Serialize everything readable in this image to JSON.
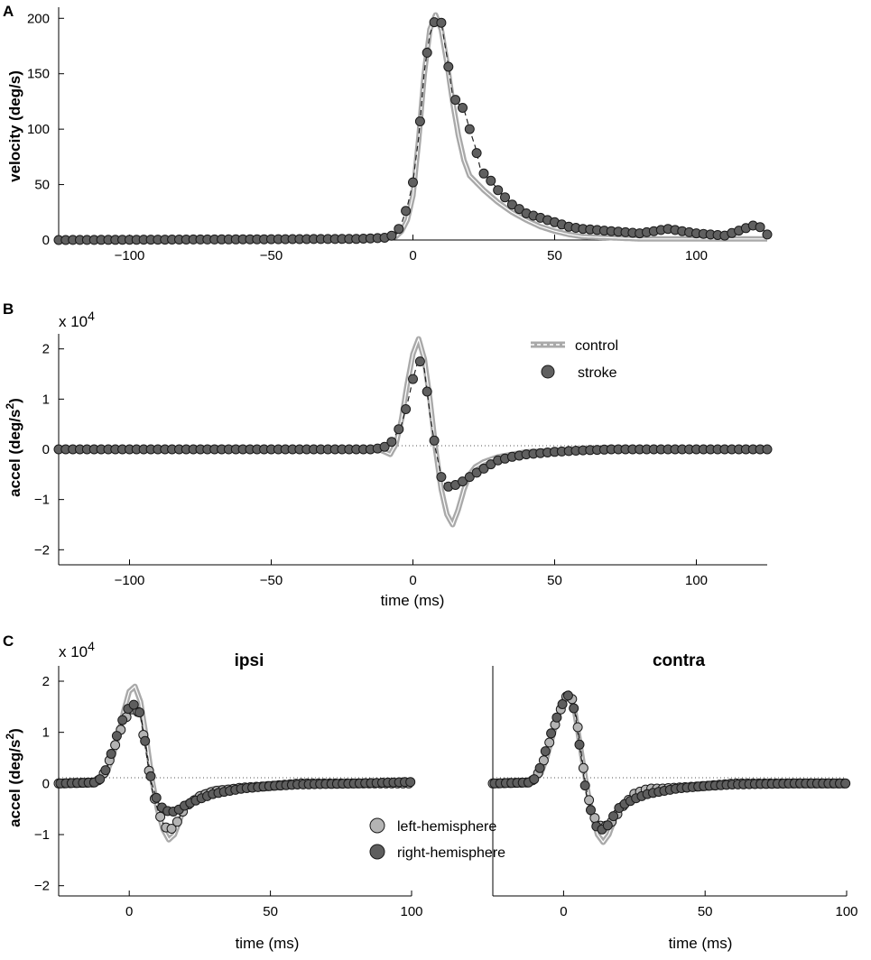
{
  "chart_data": [
    {
      "panel": "A",
      "type": "line",
      "xlabel": "",
      "ylabel": "velocity (deg/s)",
      "xlim": [
        -125,
        125
      ],
      "ylim": [
        0,
        210
      ],
      "xticks": [
        -100,
        -50,
        0,
        50,
        100
      ],
      "xtick_labels": [
        "−100",
        "−50",
        "0",
        "50",
        "100"
      ],
      "yticks": [
        0,
        50,
        100,
        150,
        200
      ],
      "ytick_labels": [
        "0",
        "50",
        "100",
        "150",
        "200"
      ],
      "series": [
        {
          "name": "control",
          "style": "gray line with dashed center",
          "x": [
            -125,
            -20,
            -10,
            -6,
            -4,
            -2,
            0,
            2,
            4,
            6,
            8,
            10,
            12,
            14,
            16,
            18,
            20,
            25,
            30,
            35,
            40,
            45,
            50,
            55,
            60,
            70,
            80,
            100,
            125
          ],
          "values": [
            0,
            0,
            1,
            3,
            8,
            18,
            40,
            90,
            150,
            190,
            203,
            190,
            160,
            125,
            95,
            72,
            58,
            45,
            34,
            25,
            18,
            12,
            8,
            5,
            3,
            2,
            1,
            1,
            1
          ]
        },
        {
          "name": "stroke",
          "style": "dark gray markers",
          "x": [
            -125,
            -20,
            -10,
            -6,
            -4,
            -2,
            0,
            2,
            4,
            6,
            8,
            10,
            12,
            14,
            16,
            18,
            20,
            22,
            24,
            26,
            28,
            30,
            35,
            40,
            45,
            50,
            55,
            60,
            70,
            80,
            90,
            100,
            110,
            120,
            122,
            125
          ],
          "values": [
            0,
            1,
            2,
            5,
            15,
            30,
            52,
            92,
            152,
            186,
            200,
            196,
            165,
            130,
            123,
            118,
            100,
            84,
            62,
            58,
            52,
            45,
            32,
            24,
            20,
            16,
            12,
            10,
            8,
            6,
            10,
            6,
            4,
            13,
            13,
            5
          ]
        }
      ]
    },
    {
      "panel": "B",
      "type": "line",
      "xlabel": "time (ms)",
      "ylabel": "accel (deg/s²)",
      "multiplier": "x 10",
      "multiplier_exp": "4",
      "xlim": [
        -125,
        125
      ],
      "ylim": [
        -2.3,
        2.3
      ],
      "xticks": [
        -100,
        -50,
        0,
        50,
        100
      ],
      "xtick_labels": [
        "−100",
        "−50",
        "0",
        "50",
        "100"
      ],
      "yticks": [
        -2,
        -1,
        0,
        1,
        2
      ],
      "ytick_labels": [
        "−2",
        "−1",
        "0",
        "1",
        "2"
      ],
      "legend": [
        "control",
        "stroke"
      ],
      "legend_position": "top-right",
      "series": [
        {
          "name": "control",
          "x": [
            -125,
            -12,
            -8,
            -6,
            -4,
            -2,
            0,
            2,
            4,
            6,
            8,
            10,
            12,
            14,
            16,
            18,
            20,
            22,
            25,
            30,
            40,
            60,
            125
          ],
          "values": [
            0,
            0,
            -0.1,
            0.1,
            0.6,
            1.3,
            1.9,
            2.2,
            1.8,
            1.0,
            0.0,
            -0.8,
            -1.3,
            -1.5,
            -1.2,
            -0.8,
            -0.5,
            -0.35,
            -0.25,
            -0.15,
            -0.05,
            0,
            0
          ]
        },
        {
          "name": "stroke",
          "x": [
            -125,
            -15,
            -12,
            -10,
            -8,
            -6,
            -4,
            -2,
            0,
            2,
            4,
            6,
            8,
            10,
            12,
            14,
            16,
            18,
            20,
            22,
            24,
            26,
            28,
            30,
            35,
            40,
            50,
            60,
            70,
            80,
            100,
            125
          ],
          "values": [
            0,
            0,
            0.02,
            0.05,
            0.1,
            0.3,
            0.5,
            0.9,
            1.4,
            1.8,
            1.6,
            0.7,
            0,
            -0.55,
            -0.75,
            -0.72,
            -0.7,
            -0.62,
            -0.55,
            -0.48,
            -0.42,
            -0.35,
            -0.28,
            -0.22,
            -0.15,
            -0.1,
            -0.05,
            -0.02,
            0,
            0,
            0,
            0
          ]
        }
      ]
    },
    {
      "panel": "C",
      "title": "ipsi",
      "type": "line",
      "xlabel": "time (ms)",
      "ylabel": "accel (deg/s²)",
      "multiplier": "x 10",
      "multiplier_exp": "4",
      "xlim": [
        -25,
        100
      ],
      "ylim": [
        -2.2,
        2.3
      ],
      "xticks": [
        0,
        50,
        100
      ],
      "xtick_labels": [
        "0",
        "50",
        "100"
      ],
      "yticks": [
        -2,
        -1,
        0,
        1,
        2
      ],
      "ytick_labels": [
        "−2",
        "−1",
        "0",
        "1",
        "2"
      ],
      "legend": [
        "left-hemisphere",
        "right-hemisphere"
      ],
      "legend_position": "bottom-center",
      "series": [
        {
          "name": "control",
          "x": [
            -25,
            -12,
            -8,
            -6,
            -4,
            -2,
            0,
            2,
            4,
            6,
            8,
            10,
            12,
            14,
            16,
            18,
            20,
            25,
            30,
            40,
            60,
            100
          ],
          "values": [
            0,
            0,
            0.2,
            0.5,
            0.9,
            1.4,
            1.8,
            1.9,
            1.6,
            0.9,
            0.1,
            -0.5,
            -0.9,
            -1.1,
            -1.0,
            -0.7,
            -0.4,
            -0.2,
            -0.1,
            -0.05,
            0,
            0
          ]
        },
        {
          "name": "left-hemisphere",
          "x": [
            -25,
            -12,
            -10,
            -8,
            -6,
            -4,
            -2,
            0,
            2,
            4,
            6,
            8,
            10,
            12,
            14,
            16,
            18,
            20,
            25,
            30,
            35,
            40,
            50,
            60,
            80,
            100
          ],
          "values": [
            0,
            0.02,
            0.1,
            0.3,
            0.6,
            0.9,
            1.2,
            1.4,
            1.5,
            1.3,
            0.6,
            -0.1,
            -0.5,
            -0.8,
            -0.92,
            -0.85,
            -0.65,
            -0.45,
            -0.25,
            -0.15,
            -0.12,
            -0.08,
            -0.05,
            0,
            0,
            0
          ]
        },
        {
          "name": "right-hemisphere",
          "x": [
            -25,
            -12,
            -10,
            -8,
            -6,
            -4,
            -2,
            0,
            2,
            4,
            6,
            8,
            10,
            12,
            14,
            16,
            18,
            20,
            25,
            30,
            35,
            40,
            50,
            60,
            80,
            100
          ],
          "values": [
            0,
            0.02,
            0.1,
            0.3,
            0.65,
            1.0,
            1.3,
            1.5,
            1.55,
            1.35,
            0.7,
            0,
            -0.35,
            -0.5,
            -0.55,
            -0.55,
            -0.5,
            -0.42,
            -0.3,
            -0.2,
            -0.15,
            -0.1,
            -0.05,
            -0.02,
            0,
            0.03
          ]
        }
      ]
    },
    {
      "panel": "C",
      "title": "contra",
      "type": "line",
      "xlabel": "time (ms)",
      "ylabel": "",
      "xlim": [
        -25,
        100
      ],
      "ylim": [
        -2.2,
        2.3
      ],
      "xticks": [
        0,
        50,
        100
      ],
      "xtick_labels": [
        "0",
        "50",
        "100"
      ],
      "series": [
        {
          "name": "control",
          "x": [
            -25,
            -12,
            -8,
            -6,
            -4,
            -2,
            0,
            2,
            4,
            6,
            8,
            10,
            12,
            14,
            16,
            18,
            20,
            25,
            30,
            40,
            60,
            100
          ],
          "values": [
            0,
            0,
            0.2,
            0.5,
            0.9,
            1.3,
            1.65,
            1.75,
            1.4,
            0.7,
            0,
            -0.6,
            -1.0,
            -1.15,
            -1.0,
            -0.7,
            -0.45,
            -0.2,
            -0.1,
            -0.05,
            0,
            0
          ]
        },
        {
          "name": "left-hemisphere",
          "x": [
            -25,
            -12,
            -10,
            -8,
            -6,
            -4,
            -2,
            0,
            2,
            4,
            6,
            8,
            10,
            12,
            14,
            16,
            18,
            20,
            25,
            30,
            35,
            40,
            50,
            60,
            80,
            100
          ],
          "values": [
            0,
            0.02,
            0.1,
            0.3,
            0.6,
            1.0,
            1.3,
            1.6,
            1.8,
            1.5,
            0.7,
            -0.1,
            -0.55,
            -0.8,
            -0.85,
            -0.8,
            -0.7,
            -0.5,
            -0.2,
            -0.1,
            -0.1,
            -0.08,
            -0.05,
            0,
            0,
            0
          ]
        },
        {
          "name": "right-hemisphere",
          "x": [
            -25,
            -12,
            -10,
            -8,
            -6,
            -4,
            -2,
            0,
            2,
            4,
            6,
            8,
            10,
            12,
            14,
            16,
            18,
            20,
            25,
            30,
            35,
            40,
            50,
            60,
            80,
            100
          ],
          "values": [
            0,
            0.02,
            0.1,
            0.35,
            0.7,
            1.05,
            1.35,
            1.6,
            1.75,
            1.4,
            0.6,
            -0.2,
            -0.6,
            -0.9,
            -0.9,
            -0.8,
            -0.6,
            -0.45,
            -0.3,
            -0.2,
            -0.15,
            -0.1,
            -0.05,
            -0.02,
            0,
            0
          ]
        }
      ]
    }
  ],
  "labels": {
    "panelA": "A",
    "panelB": "B",
    "panelC": "C",
    "ylabelA": "velocity (deg/s)",
    "ylabelB_main": "accel (deg/s",
    "ylabelB_sup": "2",
    "ylabelB_end": ")",
    "xlabelB": "time (ms)",
    "multB": "x 10",
    "multB_exp": "4",
    "multC": "x 10",
    "multC_exp": "4",
    "titleIpsi": "ipsi",
    "titleContra": "contra",
    "xlabelC1": "time (ms)",
    "xlabelC2": "time (ms)",
    "legendControl": "control",
    "legendStroke": "stroke",
    "legendLeft": "left-hemisphere",
    "legendRight": "right-hemisphere"
  },
  "colors": {
    "control": "#a9a9a9",
    "stroke": "#606060",
    "left": "#b4b4b4",
    "right": "#5e5e5e",
    "axis": "#000000"
  }
}
